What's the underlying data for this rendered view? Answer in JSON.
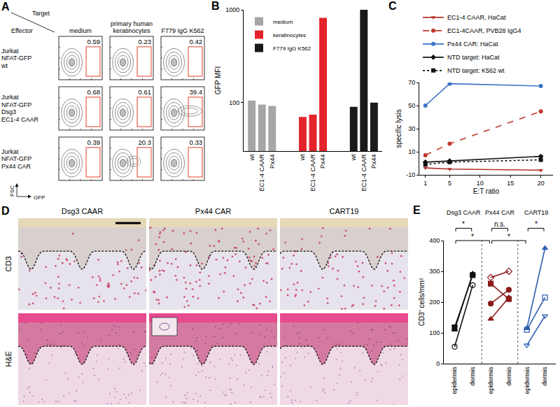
{
  "chart_data": [
    {
      "label": "A",
      "type": "flow_grid",
      "corner_top": "Target",
      "corner_left": "Effector",
      "columns": [
        [
          "medium"
        ],
        [
          "primary human",
          "keratinocytes"
        ],
        [
          "F779 IgG K562"
        ]
      ],
      "rows": [
        [
          "Jurkat",
          "NFAT-GFP",
          "wt"
        ],
        [
          "Jurkat",
          "NFAT-GFP",
          "Dsg3",
          "EC1-4 CAAR"
        ],
        [
          "Jurkat",
          "NFAT-GFP",
          "Px44 CAR"
        ]
      ],
      "gate_percent": [
        [
          0.59,
          0.23,
          0.42
        ],
        [
          0.68,
          0.61,
          39.4
        ],
        [
          0.39,
          20.3,
          0.33
        ]
      ],
      "x_label": "GFP",
      "y_label": "FSC",
      "color": "#e8503f"
    },
    {
      "label": "B",
      "type": "bar",
      "y_label": "GFP MFI",
      "log": "y",
      "categories": [
        "wt",
        "EC1-4 CAAR",
        "Px44"
      ],
      "series": [
        {
          "name": "medium",
          "color": "#a6a6a6",
          "values": [
            105,
            95,
            92
          ]
        },
        {
          "name": "keratinocytes",
          "color": "#e3242b",
          "values": [
            70,
            74,
            820
          ]
        },
        {
          "name": "F779 IgG K562",
          "color": "#1a1a1a",
          "values": [
            90,
            1000,
            100
          ]
        }
      ],
      "ylim": [
        30,
        1000
      ],
      "yticks": [
        100,
        1000
      ],
      "legend": "top left"
    },
    {
      "label": "C",
      "type": "line",
      "x_label": "E:T ratio",
      "y_label": "specific lysis",
      "x": [
        1,
        5,
        20
      ],
      "xlim": [
        0,
        22
      ],
      "xticks": [
        1,
        5,
        10,
        15,
        20
      ],
      "ylim": [
        -10,
        70
      ],
      "yticks": [
        -10,
        10,
        30,
        50,
        70
      ],
      "legend": "top",
      "series": [
        {
          "name": "EC1-4 CAAR, HaCat",
          "color": "#b5312b",
          "marker": "triangle-down",
          "line_style": "solid",
          "values": [
            -4,
            -5,
            -6
          ]
        },
        {
          "name": "EC1-4CAAR, PVB28 IgG4",
          "color": "#c0392b",
          "marker": "circle",
          "line_style": "dashed",
          "values": [
            7,
            17,
            45
          ]
        },
        {
          "name": "Px44 CAR: HaCat",
          "color": "#3b74c9",
          "marker": "circle",
          "line_style": "solid",
          "values": [
            50,
            69,
            67
          ]
        },
        {
          "name": "NTD target: HaCat",
          "color": "#111111",
          "marker": "diamond",
          "line_style": "solid",
          "values": [
            1,
            2,
            6
          ]
        },
        {
          "name": "NTD target: K562 wt",
          "color": "#111111",
          "marker": "square",
          "line_style": "dotted",
          "values": [
            -1,
            1,
            3
          ]
        }
      ]
    },
    {
      "label": "D",
      "type": "image_grid",
      "columns": [
        "Dsg3 CAAR",
        "Px44 CAR",
        "CART19"
      ],
      "rows": [
        "CD3",
        "H&E"
      ]
    },
    {
      "label": "E",
      "type": "paired_dot",
      "y_label": "CD3⁺ cells/mm²",
      "categories": [
        "epidermis",
        "dermis",
        "epidermis",
        "dermis",
        "epidermis",
        "dermis"
      ],
      "groups": [
        {
          "name": "Dsg3 CAAR",
          "color": "#111111",
          "series": [
            {
              "marker": "circle-open",
              "values": [
                55,
                255
              ]
            },
            {
              "marker": "triangle-up",
              "values": [
                110,
                292
              ]
            },
            {
              "marker": "square",
              "values": [
                118,
                288
              ]
            }
          ]
        },
        {
          "name": "Px44 CAR",
          "color": "#8b1a1a",
          "series": [
            {
              "marker": "diamond-open",
              "values": [
                280,
                300
              ]
            },
            {
              "marker": "square",
              "values": [
                260,
                210
              ]
            },
            {
              "marker": "circle",
              "values": [
                195,
                240
              ]
            },
            {
              "marker": "triangle-up",
              "values": [
                145,
                215
              ]
            }
          ]
        },
        {
          "name": "CART19",
          "color": "#2a5db0",
          "series": [
            {
              "marker": "triangle-up",
              "values": [
                115,
                375
              ]
            },
            {
              "marker": "square-open",
              "values": [
                110,
                215
              ]
            },
            {
              "marker": "triangle-down-open",
              "values": [
                60,
                155
              ]
            }
          ]
        }
      ],
      "comparisons": [
        {
          "between": [
            0,
            1
          ],
          "label": "*"
        },
        {
          "between": [
            0,
            2
          ],
          "label": "*"
        },
        {
          "between": [
            2,
            3
          ],
          "label": "n.s."
        },
        {
          "between": [
            2,
            4
          ],
          "label": "*"
        },
        {
          "between": [
            4,
            5
          ],
          "label": "*"
        }
      ],
      "ylim": [
        0,
        400
      ],
      "yticks": [
        0,
        100,
        200,
        300,
        400
      ]
    }
  ]
}
